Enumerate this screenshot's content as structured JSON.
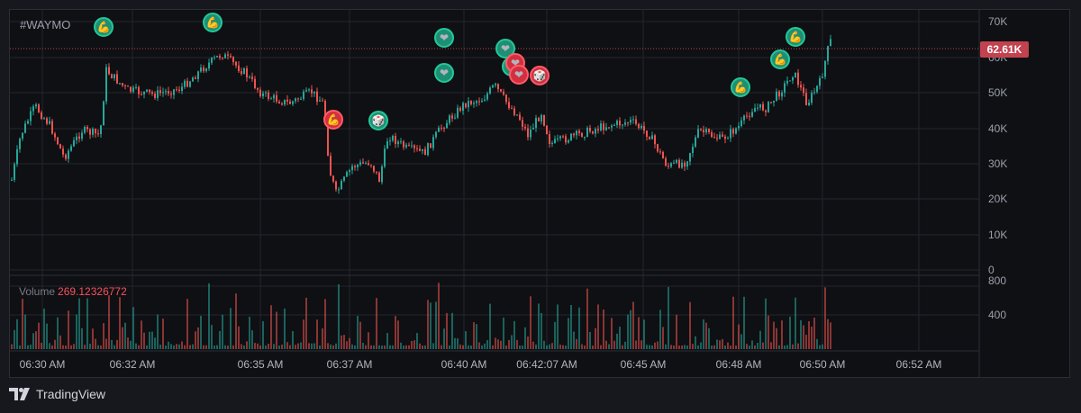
{
  "chart": {
    "ticker": "#WAYMO",
    "volume_label": "Volume",
    "volume_value": "269.12326772",
    "price_badge": "62.61K",
    "y_ticks": [
      "70K",
      "60K",
      "50K",
      "40K",
      "30K",
      "20K",
      "10K",
      "0"
    ],
    "volume_ticks": [
      "800",
      "400"
    ],
    "x_ticks": [
      "06:30 AM",
      "06:32 AM",
      "06:35 AM",
      "06:37 AM",
      "06:40 AM",
      "06:42:07 AM",
      "06:45 AM",
      "06:48 AM",
      "06:50 AM",
      "06:52 AM"
    ],
    "colors": {
      "up": "#26a69a",
      "down": "#ef5350",
      "badge": "#c2424f",
      "grid": "#23262d",
      "background": "#0f1013"
    }
  },
  "footer": {
    "brand": "TradingView"
  },
  "markers": [
    {
      "icon": "muscle-icon",
      "glyph": "💪",
      "color": "green"
    },
    {
      "icon": "muscle-icon",
      "glyph": "💪",
      "color": "green"
    },
    {
      "icon": "heart-icon",
      "glyph": "❤",
      "color": "green"
    },
    {
      "icon": "heart-icon",
      "glyph": "❤",
      "color": "green"
    },
    {
      "icon": "muscle-icon",
      "glyph": "💪",
      "color": "red"
    },
    {
      "icon": "dice-icon",
      "glyph": "🎲",
      "color": "green"
    },
    {
      "icon": "heart-icon",
      "glyph": "❤",
      "color": "green"
    },
    {
      "icon": "heart-icon",
      "glyph": "❤",
      "color": "green"
    },
    {
      "icon": "heart-icon",
      "glyph": "❤",
      "color": "red"
    },
    {
      "icon": "heart-icon",
      "glyph": "❤",
      "color": "red"
    },
    {
      "icon": "dice-icon",
      "glyph": "🎲",
      "color": "red"
    },
    {
      "icon": "muscle-icon",
      "glyph": "💪",
      "color": "green"
    },
    {
      "icon": "muscle-icon",
      "glyph": "💪",
      "color": "green"
    },
    {
      "icon": "muscle-icon",
      "glyph": "💪",
      "color": "green"
    }
  ]
}
